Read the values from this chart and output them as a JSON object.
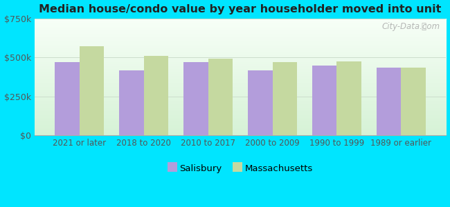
{
  "title": "Median house/condo value by year householder moved into unit",
  "categories": [
    "2021 or later",
    "2018 to 2020",
    "2010 to 2017",
    "2000 to 2009",
    "1990 to 1999",
    "1989 or earlier"
  ],
  "salisbury_values": [
    470000,
    415000,
    470000,
    415000,
    450000,
    435000
  ],
  "massachusetts_values": [
    575000,
    510000,
    495000,
    470000,
    475000,
    435000
  ],
  "salisbury_color": "#b39ddb",
  "massachusetts_color": "#c5d9a0",
  "background_color": "#00e5ff",
  "plot_bg_top": "#f5fff5",
  "plot_bg_bottom": "#d8f0d8",
  "ylim": [
    0,
    750000
  ],
  "yticks": [
    0,
    250000,
    500000,
    750000
  ],
  "ytick_labels": [
    "$0",
    "$250k",
    "$500k",
    "$750k"
  ],
  "bar_width": 0.38,
  "legend_labels": [
    "Salisbury",
    "Massachusetts"
  ],
  "watermark": "City-Data.com",
  "figure_width": 6.5,
  "figure_height": 3.0,
  "dpi": 100
}
